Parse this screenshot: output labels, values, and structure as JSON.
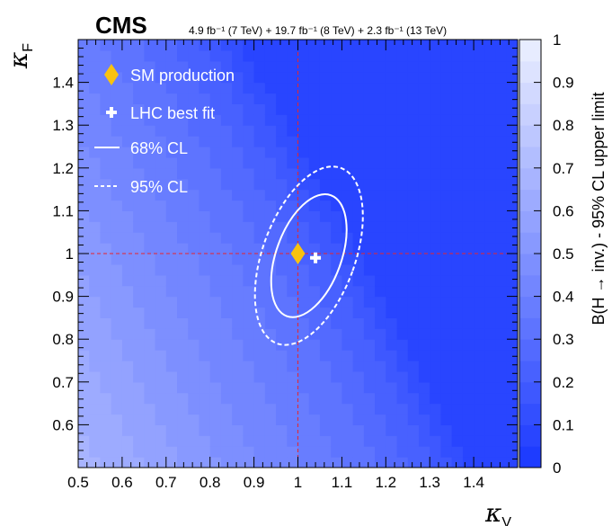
{
  "header": {
    "experiment": "CMS",
    "luminosity": "4.9 fb⁻¹ (7 TeV) + 19.7 fb⁻¹ (8 TeV) + 2.3 fb⁻¹ (13 TeV)"
  },
  "chart_data": {
    "type": "heatmap",
    "xlabel": "κ",
    "xlabel_sub": "V",
    "ylabel": "κ",
    "ylabel_sub": "F",
    "zlabel": "B(H → inv.) - 95% CL upper limit",
    "xlim": [
      0.5,
      1.5
    ],
    "ylim": [
      0.5,
      1.5
    ],
    "zlim": [
      0,
      1
    ],
    "x_ticks": [
      "0.5",
      "0.6",
      "0.7",
      "0.8",
      "0.9",
      "1",
      "1.1",
      "1.2",
      "1.3",
      "1.4"
    ],
    "y_ticks": [
      "0.6",
      "0.7",
      "0.8",
      "0.9",
      "1",
      "1.1",
      "1.2",
      "1.3",
      "1.4"
    ],
    "z_ticks": [
      "0",
      "0.1",
      "0.2",
      "0.3",
      "0.4",
      "0.5",
      "0.6",
      "0.7",
      "0.8",
      "0.9",
      "1"
    ],
    "grid": false,
    "colors": {
      "low": "#1e3cff",
      "high": "#f2f5ff"
    },
    "legend_position": "top-left",
    "legend": [
      {
        "label": "SM production",
        "marker": "diamond",
        "color": "#f9c20f"
      },
      {
        "label": "LHC best fit",
        "marker": "cross",
        "color": "#ffffff"
      },
      {
        "label": "68% CL",
        "marker": "solid-line",
        "color": "#ffffff"
      },
      {
        "label": "95% CL",
        "marker": "dashed-line",
        "color": "#ffffff"
      }
    ],
    "reference_lines": {
      "x": 1.0,
      "y": 1.0,
      "color": "#e8242e"
    },
    "sm_point": {
      "x": 1.0,
      "y": 1.0
    },
    "best_fit": {
      "x": 1.04,
      "y": 0.99
    },
    "contour_68": {
      "x_range": [
        0.93,
        1.12
      ],
      "y_range": [
        0.84,
        1.15
      ]
    },
    "contour_95": {
      "x_range": [
        0.89,
        1.16
      ],
      "y_range": [
        0.77,
        1.22
      ]
    },
    "limit_map": {
      "x_step": 0.025,
      "y_step": 0.025,
      "description_of_field": "limit decreases from ~0.68 at (0.5,0.5) to ~0.07 at (1.5,1.5), dropping steeply across the diagonal band x + 0.5*y > 1.6"
    }
  }
}
